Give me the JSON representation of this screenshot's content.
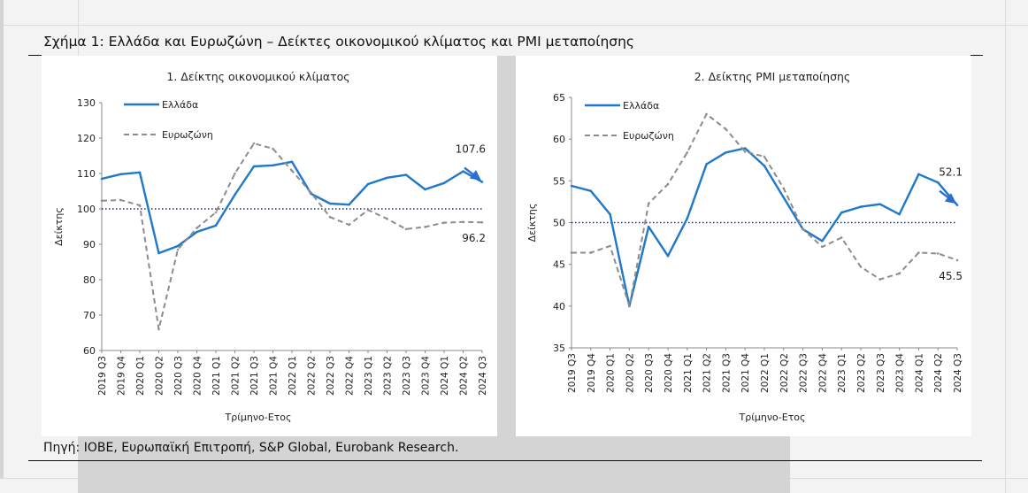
{
  "figure_title": "Σχήμα 1: Ελλάδα και Ευρωζώνη – Δείκτες οικονομικού κλίματος και PMI μεταποίησης",
  "source": "Πηγή: IOBE, Ευρωπαϊκή Επιτροπή, S&P Global, Eurobank Research.",
  "colors": {
    "greece": "#1f78c8",
    "eurozone": "#8c8c8c",
    "reference": "#1a2a8a",
    "arrow": "#2a6fd0",
    "axis": "#888888"
  },
  "chart_data": [
    {
      "type": "line",
      "title": "1. Δείκτης οικονομικού κλίματος",
      "xlabel": "Τρίμηνο-Ετος",
      "ylabel": "Δείκτης",
      "ylim": [
        60,
        130
      ],
      "yticks": [
        "60",
        "70",
        "80",
        "90",
        "100",
        "110",
        "120",
        "130"
      ],
      "reference_line": 100,
      "legend_position": "top-left",
      "categories": [
        "2019 Q3",
        "2019 Q4",
        "2020 Q1",
        "2020 Q2",
        "2020 Q3",
        "2020 Q4",
        "2021 Q1",
        "2021 Q2",
        "2021 Q3",
        "2021 Q4",
        "2022 Q1",
        "2022 Q2",
        "2022 Q3",
        "2022 Q4",
        "2023 Q1",
        "2023 Q2",
        "2023 Q3",
        "2023 Q4",
        "2024 Q1",
        "2024 Q2",
        "2024 Q3"
      ],
      "series": [
        {
          "name": "Ελλάδα",
          "style": "solid",
          "values": [
            108.5,
            109.8,
            110.3,
            87.5,
            89.5,
            93.5,
            95.3,
            104,
            112,
            112.3,
            113.3,
            104.3,
            101.5,
            101.2,
            107,
            108.8,
            109.6,
            105.5,
            107.3,
            110.6,
            107.6
          ]
        },
        {
          "name": "Ευρωζώνη",
          "style": "dashed",
          "values": [
            102.3,
            102.5,
            101,
            66,
            88.5,
            94.6,
            99,
            110,
            118.5,
            117,
            110.8,
            104.6,
            97.7,
            95.5,
            99.7,
            97.2,
            94.3,
            94.9,
            96.1,
            96.3,
            96.2
          ]
        }
      ],
      "annotations": [
        {
          "text": "107.6",
          "series": "Ελλάδα",
          "index": 20
        },
        {
          "text": "96.2",
          "series": "Ευρωζώνη",
          "index": 20
        }
      ]
    },
    {
      "type": "line",
      "title": "2. Δείκτης PMI μεταποίησης",
      "xlabel": "Τρίμηνο-Ετος",
      "ylabel": "Δείκτης",
      "ylim": [
        35,
        65
      ],
      "yticks": [
        "35",
        "40",
        "45",
        "50",
        "55",
        "60",
        "65"
      ],
      "reference_line": 50,
      "legend_position": "top-left",
      "categories": [
        "2019 Q3",
        "2019 Q4",
        "2020 Q1",
        "2020 Q2",
        "2020 Q3",
        "2020 Q4",
        "2021 Q1",
        "2021 Q2",
        "2021 Q3",
        "2021 Q4",
        "2022 Q1",
        "2022 Q2",
        "2022 Q3",
        "2022 Q4",
        "2023 Q1",
        "2023 Q2",
        "2023 Q3",
        "2023 Q4",
        "2024 Q1",
        "2024 Q2",
        "2024 Q3"
      ],
      "series": [
        {
          "name": "Ελλάδα",
          "style": "solid",
          "values": [
            54.4,
            53.8,
            51,
            40,
            49.5,
            46,
            50.5,
            57,
            58.4,
            58.9,
            56.8,
            53,
            49.2,
            47.8,
            51.2,
            51.9,
            52.2,
            51,
            55.8,
            54.8,
            52.1
          ]
        },
        {
          "name": "Ευρωζώνη",
          "style": "dashed",
          "values": [
            46.4,
            46.4,
            47.2,
            40,
            52.3,
            54.6,
            58.4,
            63,
            61.2,
            58.5,
            57.9,
            54.1,
            49.2,
            47.1,
            48.2,
            44.7,
            43.2,
            43.9,
            46.4,
            46.3,
            45.5
          ]
        }
      ],
      "annotations": [
        {
          "text": "52.1",
          "series": "Ελλάδα",
          "index": 20
        },
        {
          "text": "45.5",
          "series": "Ευρωζώνη",
          "index": 20
        }
      ]
    }
  ]
}
